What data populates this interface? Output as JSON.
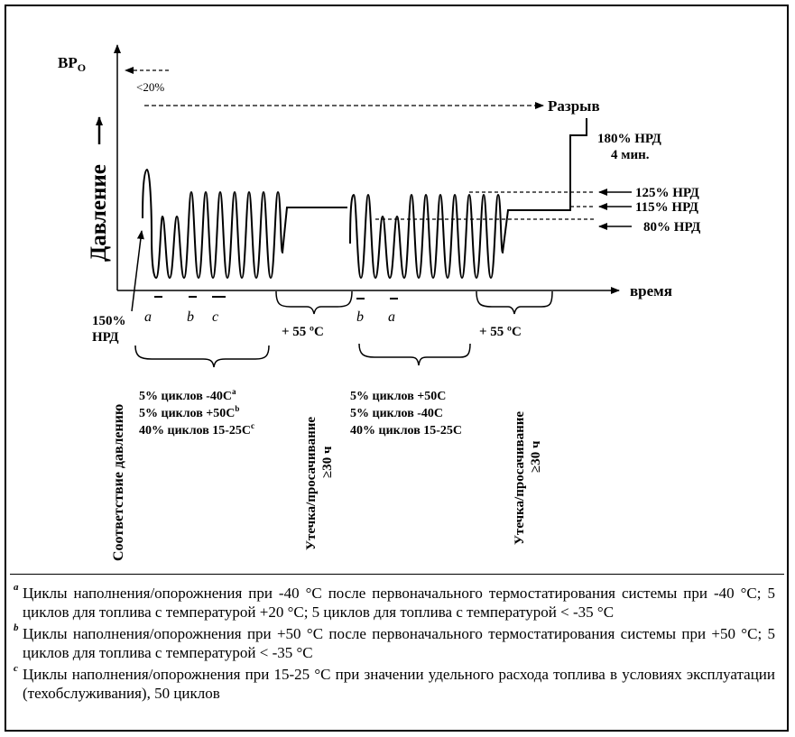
{
  "diagram": {
    "y_axis_label": "ВР",
    "y_axis_sub": "O",
    "x_axis_label": "время",
    "pressure_label": "Давление",
    "lt20_label": "<20%",
    "burst_label": "Разрыв",
    "label_180_line1": "180% НРД",
    "label_180_line2": "4 мин.",
    "label_125": "125% НРД",
    "label_115": "115% НРД",
    "label_80": "80% НРД",
    "label_150_line1": "150%",
    "label_150_line2": "НРД",
    "phase_a1": "a",
    "phase_b1": "b",
    "phase_c1": "c",
    "phase_b2": "b",
    "phase_a2": "a",
    "temp1": "+ 55 ºС",
    "temp2": "+ 55 ºС",
    "vert_pressure": "Соответствие давлению",
    "vert_leak1_line1": "Утечка/просачивание",
    "vert_leak1_line2": "≥30 ч",
    "vert_leak2_line1": "Утечка/просачивание",
    "vert_leak2_line2": "≥30 ч",
    "group1_line1": "5% циклов -40С",
    "group1_sup1": "a",
    "group1_line2": "5% циклов +50С",
    "group1_sup2": "b",
    "group1_line3": "40% циклов 15-25С",
    "group1_sup3": "c",
    "group2_line1": "5% циклов +50С",
    "group2_line2": "5% циклов -40С",
    "group2_line3": "40% циклов 15-25С"
  },
  "footnotes": [
    {
      "mark": "a",
      "text": "Циклы наполнения/опорожнения при -40 °C после первоначального термостатирования системы при -40 °C; 5 циклов для топлива с температурой +20 °C; 5 циклов для топлива с температурой < -35 °C"
    },
    {
      "mark": "b",
      "text": "Циклы наполнения/опорожнения при +50 °C после первоначального термостатирования системы при +50 °C; 5 циклов для топлива с температурой < -35 °C"
    },
    {
      "mark": "c",
      "text": "Циклы наполнения/опорожнения при 15-25 °C при значении удельного расхода топлива в условиях эксплуатации (техобслуживания), 50 циклов"
    }
  ]
}
